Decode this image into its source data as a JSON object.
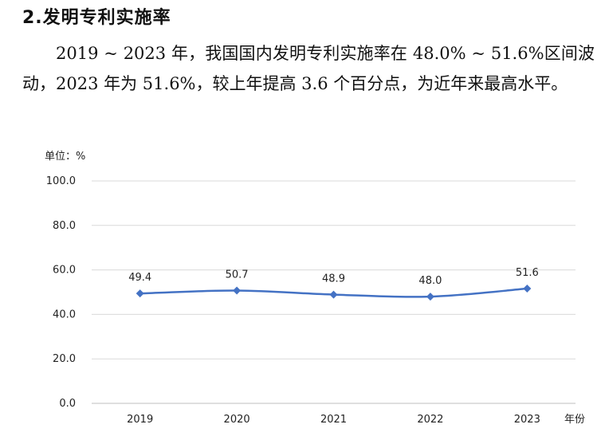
{
  "document": {
    "heading": "2.发明专利实施率",
    "paragraph": "2019 ~ 2023 年，我国国内发明专利实施率在 48.0% ~ 51.6%区间波动，2023 年为 51.6%，较上年提高 3.6 个百分点，为近年来最高水平。"
  },
  "chart_data": {
    "type": "line",
    "unit_label": "单位：%",
    "xlabel": "年份",
    "x": [
      "2019",
      "2020",
      "2021",
      "2022",
      "2023"
    ],
    "yticks": [
      "0.0",
      "20.0",
      "40.0",
      "60.0",
      "80.0",
      "100.0"
    ],
    "ylim": [
      0,
      100
    ],
    "series": [
      {
        "values": [
          49.4,
          50.7,
          48.9,
          48.0,
          51.6
        ],
        "labels": [
          "49.4",
          "50.7",
          "48.9",
          "48.0",
          "51.6"
        ],
        "color": "#4472c4"
      }
    ],
    "grid": true,
    "gridColor": "#d9d9d9"
  }
}
